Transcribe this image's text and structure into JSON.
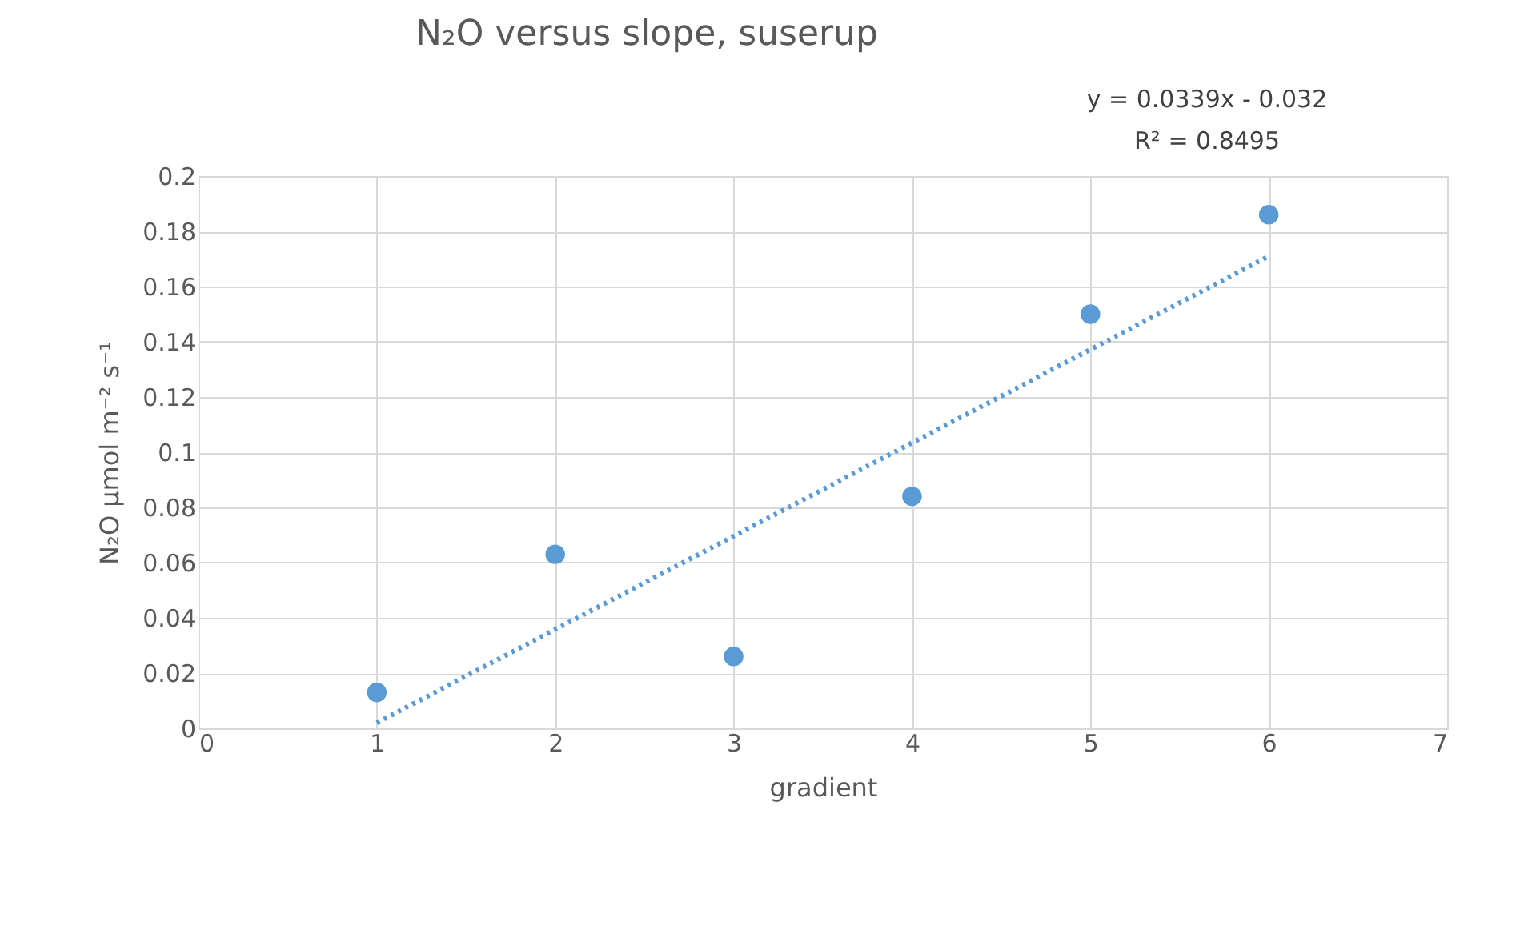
{
  "chart_data": {
    "type": "scatter",
    "title": "N₂O versus slope, suserup",
    "xlabel": "gradient",
    "ylabel": "N₂O µmol m⁻² s⁻¹",
    "x": [
      1,
      2,
      3,
      4,
      5,
      6
    ],
    "series": [
      {
        "color": "#5b9bd5",
        "values": [
          0.013,
          0.063,
          0.026,
          0.084,
          0.15,
          0.186
        ]
      },
      {
        "type": "line",
        "marker": "none",
        "color": "#5b9bd5",
        "line_style": "dotted",
        "x": [
          1,
          6
        ],
        "values": [
          0.002,
          0.171
        ]
      }
    ],
    "annotations": [
      "y = 0.0339x - 0.032",
      "R² = 0.8495"
    ],
    "xlim": [
      0,
      7
    ],
    "xticks": [
      0,
      1,
      2,
      3,
      4,
      5,
      6,
      7
    ],
    "ylim": [
      0,
      0.2
    ],
    "yticks": [
      0,
      0.02,
      0.04,
      0.06,
      0.08,
      0.1,
      0.12,
      0.14,
      0.16,
      0.18,
      0.2
    ],
    "grid": true,
    "marker": "circle"
  }
}
